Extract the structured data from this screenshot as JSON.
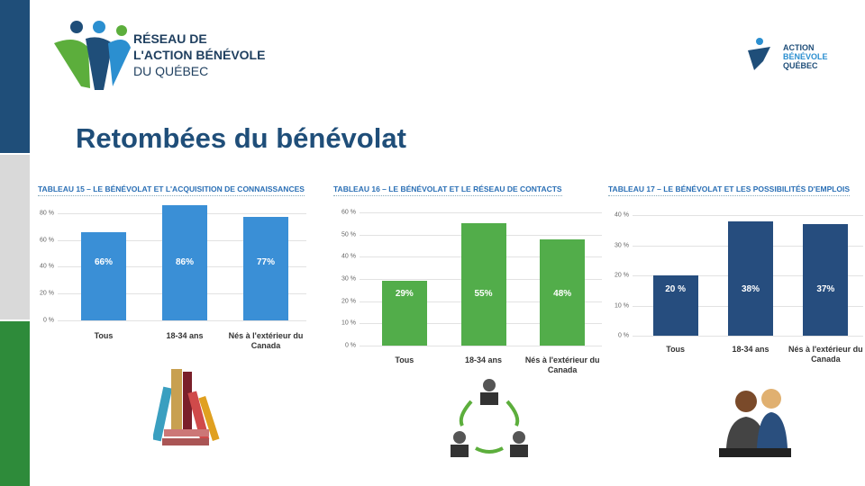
{
  "title": "Retombées du bénévolat",
  "logo_left": [
    "RÉSEAU DE",
    "L'ACTION BÉNÉVOLE",
    "DU QUÉBEC"
  ],
  "logo_right": [
    "ACTION",
    "BÉNÉVOLE",
    "QUÉBEC"
  ],
  "chart_data": [
    {
      "type": "bar",
      "title": "TABLEAU 15 – LE BÉNÉVOLAT ET L'ACQUISITION DE CONNAISSANCES",
      "categories": [
        "Tous",
        "18-34 ans",
        "Nés à l'extérieur du Canada"
      ],
      "values": [
        66,
        86,
        77
      ],
      "value_labels": [
        "66%",
        "86%",
        "77%"
      ],
      "color": "#3a8fd6",
      "ylim": [
        0,
        90
      ],
      "yticks": [
        {
          "value": 0,
          "label": "0 %"
        },
        {
          "value": 20,
          "label": "20 %"
        },
        {
          "value": 40,
          "label": "40 %"
        },
        {
          "value": 60,
          "label": "60 %"
        },
        {
          "value": 80,
          "label": "80 %"
        }
      ],
      "grid": true
    },
    {
      "type": "bar",
      "title": "TABLEAU 16 – LE BÉNÉVOLAT ET LE RÉSEAU DE CONTACTS",
      "categories": [
        "Tous",
        "18-34 ans",
        "Nés à l'extérieur du Canada"
      ],
      "values": [
        29,
        55,
        48
      ],
      "value_labels": [
        "29%",
        "55%",
        "48%"
      ],
      "color": "#52ad4a",
      "ylim": [
        0,
        60
      ],
      "yticks": [
        {
          "value": 0,
          "label": "0 %"
        },
        {
          "value": 10,
          "label": "10 %"
        },
        {
          "value": 20,
          "label": "20 %"
        },
        {
          "value": 30,
          "label": "30 %"
        },
        {
          "value": 40,
          "label": "40 %"
        },
        {
          "value": 50,
          "label": "50 %"
        },
        {
          "value": 60,
          "label": "60 %"
        }
      ],
      "grid": true
    },
    {
      "type": "bar",
      "title": "TABLEAU 17 – LE BÉNÉVOLAT ET LES POSSIBILITÉS D'EMPLOIS",
      "categories": [
        "Tous",
        "18-34 ans",
        "Nés à l'extérieur du Canada"
      ],
      "values": [
        20,
        38,
        37
      ],
      "value_labels": [
        "20 %",
        "38%",
        "37%"
      ],
      "color": "#264d7e",
      "ylim": [
        0,
        40
      ],
      "yticks": [
        {
          "value": 0,
          "label": "0 %"
        },
        {
          "value": 10,
          "label": "10 %"
        },
        {
          "value": 20,
          "label": "20 %"
        },
        {
          "value": 30,
          "label": "30 %"
        },
        {
          "value": 40,
          "label": "40 %"
        }
      ],
      "grid": true
    }
  ]
}
